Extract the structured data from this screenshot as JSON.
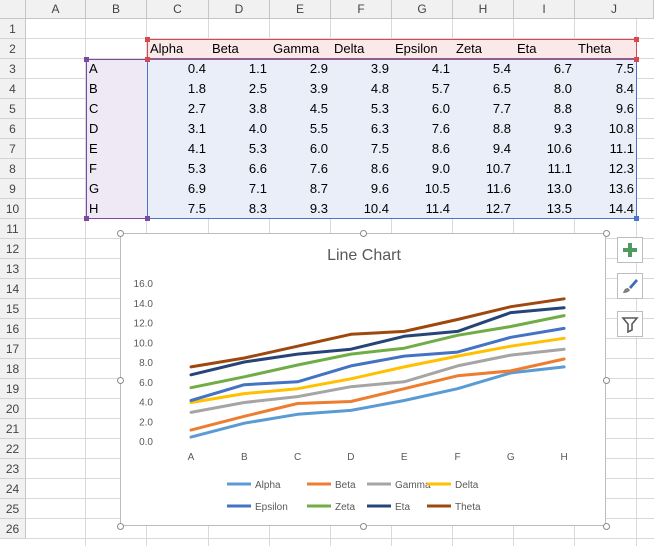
{
  "columns": [
    "A",
    "B",
    "C",
    "D",
    "E",
    "F",
    "G",
    "H",
    "I",
    "J"
  ],
  "rows": [
    "1",
    "2",
    "3",
    "4",
    "5",
    "6",
    "7",
    "8",
    "9",
    "10",
    "11",
    "12",
    "13",
    "14",
    "15",
    "16",
    "17",
    "18",
    "19",
    "20",
    "21",
    "22",
    "23",
    "24",
    "25",
    "26"
  ],
  "table": {
    "headers": [
      "Alpha",
      "Beta",
      "Gamma",
      "Delta",
      "Epsilon",
      "Zeta",
      "Eta",
      "Theta"
    ],
    "row_labels": [
      "A",
      "B",
      "C",
      "D",
      "E",
      "F",
      "G",
      "H"
    ],
    "values": [
      [
        "0.4",
        "1.1",
        "2.9",
        "3.9",
        "4.1",
        "5.4",
        "6.7",
        "7.5"
      ],
      [
        "1.8",
        "2.5",
        "3.9",
        "4.8",
        "5.7",
        "6.5",
        "8.0",
        "8.4"
      ],
      [
        "2.7",
        "3.8",
        "4.5",
        "5.3",
        "6.0",
        "7.7",
        "8.8",
        "9.6"
      ],
      [
        "3.1",
        "4.0",
        "5.5",
        "6.3",
        "7.6",
        "8.8",
        "9.3",
        "10.8"
      ],
      [
        "4.1",
        "5.3",
        "6.0",
        "7.5",
        "8.6",
        "9.4",
        "10.6",
        "11.1"
      ],
      [
        "5.3",
        "6.6",
        "7.6",
        "8.6",
        "9.0",
        "10.7",
        "11.1",
        "12.3"
      ],
      [
        "6.9",
        "7.1",
        "8.7",
        "9.6",
        "10.5",
        "11.6",
        "13.0",
        "13.6"
      ],
      [
        "7.5",
        "8.3",
        "9.3",
        "10.4",
        "11.4",
        "12.7",
        "13.5",
        "14.4"
      ]
    ]
  },
  "chart_data": {
    "type": "line",
    "title": "Line Chart",
    "categories": [
      "A",
      "B",
      "C",
      "D",
      "E",
      "F",
      "G",
      "H"
    ],
    "ylim": [
      0,
      16
    ],
    "yticks": [
      "0.0",
      "2.0",
      "4.0",
      "6.0",
      "8.0",
      "10.0",
      "12.0",
      "14.0",
      "16.0"
    ],
    "grid": false,
    "legend": "bottom",
    "series": [
      {
        "name": "Alpha",
        "color": "#5b9bd5",
        "values": [
          0.4,
          1.8,
          2.7,
          3.1,
          4.1,
          5.3,
          6.9,
          7.5
        ]
      },
      {
        "name": "Beta",
        "color": "#ed7d31",
        "values": [
          1.1,
          2.5,
          3.8,
          4.0,
          5.3,
          6.6,
          7.1,
          8.3
        ]
      },
      {
        "name": "Gamma",
        "color": "#a5a5a5",
        "values": [
          2.9,
          3.9,
          4.5,
          5.5,
          6.0,
          7.6,
          8.7,
          9.3
        ]
      },
      {
        "name": "Delta",
        "color": "#ffc000",
        "values": [
          3.9,
          4.8,
          5.3,
          6.3,
          7.5,
          8.6,
          9.6,
          10.4
        ]
      },
      {
        "name": "Epsilon",
        "color": "#4472c4",
        "values": [
          4.1,
          5.7,
          6.0,
          7.6,
          8.6,
          9.0,
          10.5,
          11.4
        ]
      },
      {
        "name": "Zeta",
        "color": "#70ad47",
        "values": [
          5.4,
          6.5,
          7.7,
          8.8,
          9.4,
          10.7,
          11.6,
          12.7
        ]
      },
      {
        "name": "Eta",
        "color": "#264478",
        "values": [
          6.7,
          8.0,
          8.8,
          9.3,
          10.6,
          11.1,
          13.0,
          13.5
        ]
      },
      {
        "name": "Theta",
        "color": "#9e480e",
        "values": [
          7.5,
          8.4,
          9.6,
          10.8,
          11.1,
          12.3,
          13.6,
          14.4
        ]
      }
    ]
  },
  "side_buttons": [
    {
      "icon": "plus-icon",
      "color": "#4f9a5f"
    },
    {
      "icon": "paintbrush-icon",
      "color": "#3c6eb4"
    },
    {
      "icon": "filter-icon",
      "color": "#595959"
    }
  ]
}
